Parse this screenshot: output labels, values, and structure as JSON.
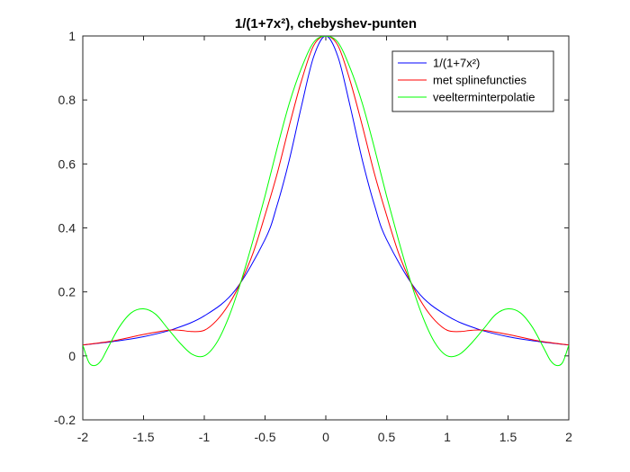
{
  "chart_data": {
    "type": "line",
    "title": "1/(1+7x²), chebyshev-punten",
    "xlabel": "",
    "ylabel": "",
    "xlim": [
      -2,
      2
    ],
    "ylim": [
      -0.2,
      1
    ],
    "xticks": [
      "-2",
      "-1.5",
      "-1",
      "-0.5",
      "0",
      "0.5",
      "1",
      "1.5",
      "2"
    ],
    "yticks": [
      "-0.2",
      "0",
      "0.2",
      "0.4",
      "0.6",
      "0.8",
      "1"
    ],
    "grid": false,
    "legend_position": "top-right",
    "series": [
      {
        "name": "1/(1+7x²)",
        "color": "#0000ff",
        "x": [
          -2,
          -1.75,
          -1.5,
          -1.25,
          -1,
          -0.75,
          -0.5,
          -0.4,
          -0.3,
          -0.2,
          -0.1,
          0,
          0.1,
          0.2,
          0.3,
          0.4,
          0.5,
          0.75,
          1,
          1.25,
          1.5,
          1.75,
          2
        ],
        "y": [
          0.034,
          0.045,
          0.06,
          0.084,
          0.125,
          0.203,
          0.364,
          0.472,
          0.613,
          0.781,
          0.935,
          1,
          0.935,
          0.781,
          0.613,
          0.472,
          0.364,
          0.203,
          0.125,
          0.084,
          0.06,
          0.045,
          0.034
        ]
      },
      {
        "name": "met splinefuncties",
        "color": "#ff0000",
        "x": [
          -2,
          -1.75,
          -1.5,
          -1.3,
          -1.2,
          -1.1,
          -1.0,
          -0.9,
          -0.8,
          -0.7,
          -0.6,
          -0.5,
          -0.4,
          -0.3,
          -0.2,
          -0.1,
          0,
          0.1,
          0.2,
          0.3,
          0.4,
          0.5,
          0.6,
          0.7,
          0.8,
          0.9,
          1.0,
          1.1,
          1.2,
          1.3,
          1.5,
          1.75,
          2
        ],
        "y": [
          0.034,
          0.047,
          0.067,
          0.08,
          0.08,
          0.076,
          0.08,
          0.11,
          0.16,
          0.23,
          0.32,
          0.44,
          0.57,
          0.72,
          0.86,
          0.97,
          1,
          0.97,
          0.86,
          0.72,
          0.57,
          0.44,
          0.32,
          0.23,
          0.16,
          0.11,
          0.08,
          0.076,
          0.08,
          0.08,
          0.067,
          0.047,
          0.034
        ]
      },
      {
        "name": "veelterminterpolatie",
        "color": "#00ff00",
        "x": [
          -2,
          -1.95,
          -1.9,
          -1.85,
          -1.8,
          -1.7,
          -1.6,
          -1.5,
          -1.4,
          -1.3,
          -1.2,
          -1.1,
          -1.0,
          -0.9,
          -0.8,
          -0.7,
          -0.6,
          -0.5,
          -0.4,
          -0.3,
          -0.2,
          -0.1,
          0,
          0.1,
          0.2,
          0.3,
          0.4,
          0.5,
          0.6,
          0.7,
          0.8,
          0.9,
          1.0,
          1.1,
          1.2,
          1.3,
          1.4,
          1.5,
          1.6,
          1.7,
          1.8,
          1.85,
          1.9,
          1.95,
          2
        ],
        "y": [
          0.034,
          -0.02,
          -0.03,
          -0.015,
          0.02,
          0.09,
          0.135,
          0.147,
          0.13,
          0.085,
          0.04,
          0.005,
          0.0,
          0.04,
          0.12,
          0.23,
          0.36,
          0.5,
          0.65,
          0.79,
          0.9,
          0.98,
          1.0,
          0.98,
          0.9,
          0.79,
          0.65,
          0.5,
          0.36,
          0.23,
          0.12,
          0.04,
          0.0,
          0.005,
          0.04,
          0.085,
          0.13,
          0.147,
          0.135,
          0.09,
          0.02,
          -0.015,
          -0.03,
          -0.02,
          0.034
        ]
      }
    ]
  }
}
